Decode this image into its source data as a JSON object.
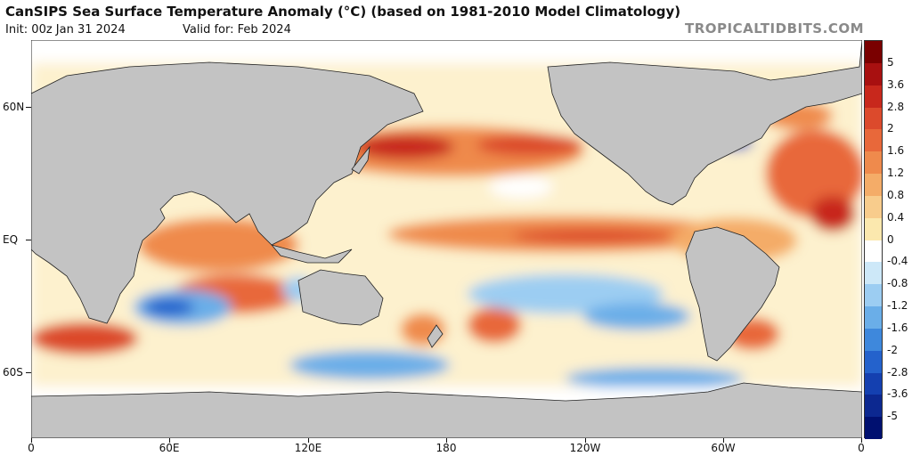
{
  "header": {
    "title": "CanSIPS Sea Surface Temperature Anomaly (°C) (based on 1981-2010 Model Climatology)",
    "init": "Init: 00z Jan 31 2024",
    "valid": "Valid for: Feb 2024",
    "brand": "TROPICALTIDBITS.COM"
  },
  "axes": {
    "lat_labels": [
      "60N",
      "EQ",
      "60S"
    ],
    "lon_labels": [
      "0",
      "60E",
      "120E",
      "180",
      "120W",
      "60W",
      "0"
    ]
  },
  "colorbar": {
    "labels": [
      "5",
      "3.6",
      "2.8",
      "2",
      "1.6",
      "1.2",
      "0.8",
      "0.4",
      "0",
      "-0.4",
      "-0.8",
      "-1.2",
      "-1.6",
      "-2",
      "-2.8",
      "-3.6",
      "-5"
    ],
    "colors": [
      "#7a0000",
      "#a81010",
      "#c8281c",
      "#dc4a2c",
      "#e8683a",
      "#ef8a4c",
      "#f4ac68",
      "#f8cc8c",
      "#fbe8ae",
      "#ffffff",
      "#cde8f8",
      "#9ccdf2",
      "#6aaee8",
      "#3e88dc",
      "#2462cc",
      "#1440b0",
      "#0c2890",
      "#001070"
    ],
    "land_color": "#c3c3c3"
  }
}
